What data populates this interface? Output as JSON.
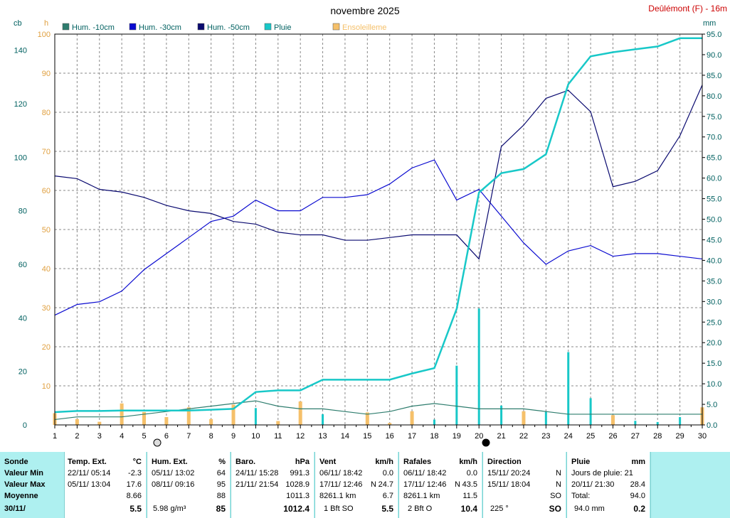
{
  "chart_data": {
    "type": "line",
    "title": "novembre 2025",
    "station": "Deûlémont (F) - 16m",
    "x": [
      1,
      2,
      3,
      4,
      5,
      6,
      7,
      8,
      9,
      10,
      11,
      12,
      13,
      14,
      15,
      16,
      17,
      18,
      19,
      20,
      21,
      22,
      23,
      24,
      25,
      26,
      27,
      28,
      29,
      30
    ],
    "xlim": [
      1,
      30
    ],
    "axes": {
      "left1": {
        "unit": "cb",
        "ticks": [
          "0",
          "20",
          "40",
          "60",
          "80",
          "100",
          "120",
          "140"
        ],
        "ylim": [
          0,
          146
        ]
      },
      "left2": {
        "unit": "h",
        "ticks": [
          "10",
          "20",
          "30",
          "40",
          "50",
          "60",
          "70",
          "80",
          "90",
          "100"
        ],
        "ylim": [
          0,
          100
        ]
      },
      "right": {
        "unit": "mm",
        "ticks": [
          "0.0",
          "5.0",
          "10.0",
          "15.0",
          "20.0",
          "25.0",
          "30.0",
          "35.0",
          "40.0",
          "45.0",
          "50.0",
          "55.0",
          "60.0",
          "65.0",
          "70.0",
          "75.0",
          "80.0",
          "85.0",
          "90.0",
          "95.0"
        ],
        "ylim": [
          0,
          95
        ]
      }
    },
    "grid": true,
    "series": [
      {
        "name": "Hum. -10cm",
        "color": "#2e7d6e",
        "axis": "left1",
        "values": [
          2,
          3,
          3,
          3,
          4,
          5,
          6,
          7,
          8,
          9,
          7,
          6,
          6,
          5,
          4,
          5,
          7,
          8,
          7,
          6,
          6,
          6,
          5,
          4,
          4,
          4,
          4,
          4,
          4,
          4
        ]
      },
      {
        "name": "Hum. -30cm",
        "color": "#0a0ad0",
        "axis": "left1",
        "values": [
          41,
          45,
          46,
          50,
          58,
          64,
          70,
          76,
          78,
          84,
          80,
          80,
          85,
          85,
          86,
          90,
          96,
          99,
          84,
          88,
          78,
          68,
          60,
          65,
          67,
          63,
          64,
          64,
          63,
          62
        ]
      },
      {
        "name": "Hum. -50cm",
        "color": "#0a0a70",
        "axis": "left1",
        "values": [
          93,
          92,
          88,
          87,
          85,
          82,
          80,
          79,
          76,
          75,
          72,
          71,
          71,
          69,
          69,
          70,
          71,
          71,
          71,
          62,
          104,
          112,
          122,
          125,
          117,
          89,
          91,
          95,
          108,
          127
        ]
      },
      {
        "name": "Pluie",
        "color": "#18c8c8",
        "axis": "right",
        "type": "line",
        "values": [
          3.1,
          3.4,
          3.4,
          3.5,
          3.5,
          3.5,
          3.5,
          3.7,
          3.9,
          8.0,
          8.4,
          8.4,
          11.0,
          11.0,
          11.0,
          11.0,
          12.5,
          13.8,
          28.2,
          56.5,
          61.2,
          62.2,
          65.8,
          82.8,
          89.6,
          90.6,
          91.3,
          92.0,
          94.0,
          94.0
        ]
      },
      {
        "name": "Pluie",
        "color": "#18c8c8",
        "axis": "right",
        "type": "bar",
        "values": [
          0.2,
          0.1,
          0.0,
          0.1,
          0.0,
          0.0,
          0.0,
          0.2,
          0.2,
          4.1,
          0.4,
          0.0,
          2.6,
          0.0,
          0.0,
          0.0,
          1.5,
          1.3,
          14.4,
          28.3,
          4.7,
          1.0,
          3.3,
          17.7,
          6.5,
          1.0,
          1.0,
          0.7,
          1.9,
          0.0
        ]
      },
      {
        "name": "Ensoleilleme",
        "color": "#f5c06a",
        "axis": "left2",
        "type": "bar",
        "values": [
          3,
          1.5,
          0.8,
          5.5,
          3.3,
          2,
          4.5,
          1.5,
          5.2,
          0,
          1,
          6,
          0,
          0,
          3.2,
          0.5,
          3.5,
          0,
          0,
          0,
          0,
          3.5,
          0,
          0,
          0,
          2.5,
          0,
          0,
          0,
          4.5
        ]
      }
    ]
  },
  "table": {
    "labels": {
      "sonde": "Sonde",
      "min": "Valeur Min",
      "max": "Valeur Max",
      "moy": "Moyenne",
      "date": "30/11/"
    },
    "temp": {
      "title": "Temp. Ext.",
      "unit": "°C",
      "min_t": "22/11/ 05:14",
      "min_v": "-2.3",
      "max_t": "05/11/ 13:04",
      "max_v": "17.6",
      "moy": "8.66",
      "cur": "5.5"
    },
    "hum": {
      "title": "Hum. Ext.",
      "unit": "%",
      "min_t": "05/11/ 13:02",
      "min_v": "64",
      "max_t": "08/11/ 09:16",
      "max_v": "95",
      "moy": "88",
      "abs": "5.98 g/m³",
      "cur": "85"
    },
    "baro": {
      "title": "Baro.",
      "unit": "hPa",
      "min_t": "24/11/ 15:28",
      "min_v": "991.3",
      "max_t": "21/11/ 21:54",
      "max_v": "1028.9",
      "moy": "1011.3",
      "cur": "1012.4"
    },
    "vent": {
      "title": "Vent",
      "unit": "km/h",
      "min_t": "06/11/ 18:42",
      "min_v": "0.0",
      "max_t": "17/11/ 12:46",
      "max_dir": "N",
      "max_v": "24.7",
      "km": "8261.1 km",
      "moy": "6.7",
      "bft": "1 Bft SO",
      "cur": "5.5"
    },
    "rafales": {
      "title": "Rafales",
      "unit": "km/h",
      "min_t": "06/11/ 18:42",
      "min_v": "0.0",
      "max_t": "17/11/ 12:46",
      "max_dir": "N",
      "max_v": "43.5",
      "km": "8261.1 km",
      "moy": "11.5",
      "bft": "2 Bft O",
      "cur": "10.4"
    },
    "direction": {
      "title": "Direction",
      "min_t": "15/11/ 20:24",
      "min_v": "N",
      "max_t": "15/11/ 18:04",
      "max_v": "N",
      "moy": "SO",
      "deg": "225 °",
      "cur": "SO"
    },
    "pluie": {
      "title": "Pluie",
      "unit": "mm",
      "jours": "Jours de pluie: 21",
      "max_t": "20/11/ 21:30",
      "max_v": "28.4",
      "total_lab": "Total:",
      "total_v": "94.0",
      "cum": "94.0 mm",
      "cur": "0.2"
    }
  }
}
